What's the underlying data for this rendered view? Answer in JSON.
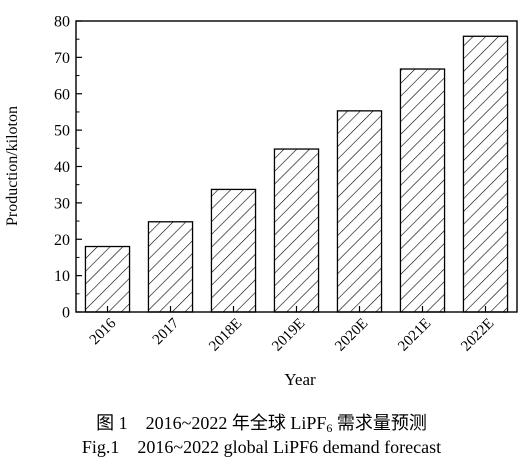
{
  "chart_data": {
    "type": "bar",
    "categories": [
      "2016",
      "2017",
      "2018E",
      "2019E",
      "2020E",
      "2021E",
      "2022E"
    ],
    "values": [
      18,
      24.8,
      33.7,
      44.8,
      55.3,
      66.8,
      75.8
    ],
    "xlabel": "Year",
    "ylabel": "Production/kiloton",
    "ylim": [
      0,
      80
    ],
    "yticks": [
      0,
      10,
      20,
      30,
      40,
      50,
      60,
      70,
      80
    ],
    "bar_fill": "diagonal hatch",
    "grid": false,
    "legend": "none"
  },
  "caption": {
    "cn_num": "图 1",
    "cn_text": "2016~2022 年全球 LiPF",
    "cn_sub": "6",
    "cn_rest": " 需求量预测",
    "en_num": "Fig.1",
    "en_text": "2016~2022 global LiPF6 demand forecast"
  }
}
